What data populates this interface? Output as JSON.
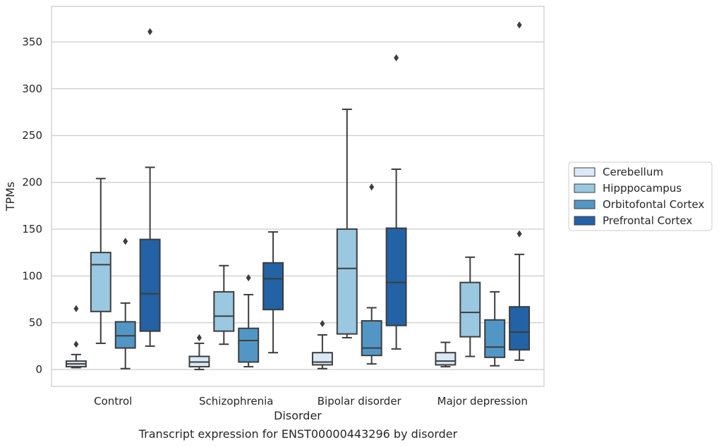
{
  "caption": "Transcript expression for ENST00000443296 by disorder",
  "chart_data": {
    "type": "box",
    "xlabel": "Disorder",
    "ylabel": "TPMs",
    "ylim": [
      -18,
      388
    ],
    "yticks": [
      0,
      50,
      100,
      150,
      200,
      250,
      300,
      350
    ],
    "grid": "horizontal",
    "legend_position": "right",
    "categories": [
      "Control",
      "Schizophrenia",
      "Bipolar disorder",
      "Major depression"
    ],
    "series": [
      {
        "name": "Cerebellum",
        "color": "#dbe9f6",
        "boxes": [
          {
            "whisker_low": 2,
            "q1": 3,
            "median": 6,
            "q3": 9,
            "whisker_high": 16,
            "outliers": [
              27,
              65
            ]
          },
          {
            "whisker_low": 0,
            "q1": 3,
            "median": 8,
            "q3": 14,
            "whisker_high": 28,
            "outliers": [
              34
            ]
          },
          {
            "whisker_low": 1,
            "q1": 5,
            "median": 8,
            "q3": 18,
            "whisker_high": 37,
            "outliers": [
              49
            ]
          },
          {
            "whisker_low": 3,
            "q1": 5,
            "median": 9,
            "q3": 18,
            "whisker_high": 29,
            "outliers": []
          }
        ]
      },
      {
        "name": "Hipppocampus",
        "color": "#9ac8e0",
        "boxes": [
          {
            "whisker_low": 28,
            "q1": 62,
            "median": 112,
            "q3": 125,
            "whisker_high": 204,
            "outliers": []
          },
          {
            "whisker_low": 27,
            "q1": 41,
            "median": 57,
            "q3": 83,
            "whisker_high": 111,
            "outliers": []
          },
          {
            "whisker_low": 34,
            "q1": 38,
            "median": 108,
            "q3": 150,
            "whisker_high": 278,
            "outliers": []
          },
          {
            "whisker_low": 14,
            "q1": 35,
            "median": 61,
            "q3": 93,
            "whisker_high": 120,
            "outliers": []
          }
        ]
      },
      {
        "name": "Orbitofontal Cortex",
        "color": "#5296c5",
        "boxes": [
          {
            "whisker_low": 1,
            "q1": 23,
            "median": 36,
            "q3": 51,
            "whisker_high": 71,
            "outliers": [
              137
            ]
          },
          {
            "whisker_low": 3,
            "q1": 8,
            "median": 31,
            "q3": 44,
            "whisker_high": 80,
            "outliers": [
              98
            ]
          },
          {
            "whisker_low": 6,
            "q1": 15,
            "median": 23,
            "q3": 52,
            "whisker_high": 66,
            "outliers": [
              195
            ]
          },
          {
            "whisker_low": 4,
            "q1": 13,
            "median": 24,
            "q3": 53,
            "whisker_high": 83,
            "outliers": []
          }
        ]
      },
      {
        "name": "Prefrontal Cortex",
        "color": "#2262a5",
        "boxes": [
          {
            "whisker_low": 25,
            "q1": 41,
            "median": 81,
            "q3": 139,
            "whisker_high": 216,
            "outliers": [
              361
            ]
          },
          {
            "whisker_low": 18,
            "q1": 64,
            "median": 97,
            "q3": 114,
            "whisker_high": 147,
            "outliers": []
          },
          {
            "whisker_low": 22,
            "q1": 47,
            "median": 93,
            "q3": 151,
            "whisker_high": 214,
            "outliers": [
              333
            ]
          },
          {
            "whisker_low": 10,
            "q1": 21,
            "median": 40,
            "q3": 67,
            "whisker_high": 123,
            "outliers": [
              145,
              368
            ]
          }
        ]
      }
    ]
  }
}
